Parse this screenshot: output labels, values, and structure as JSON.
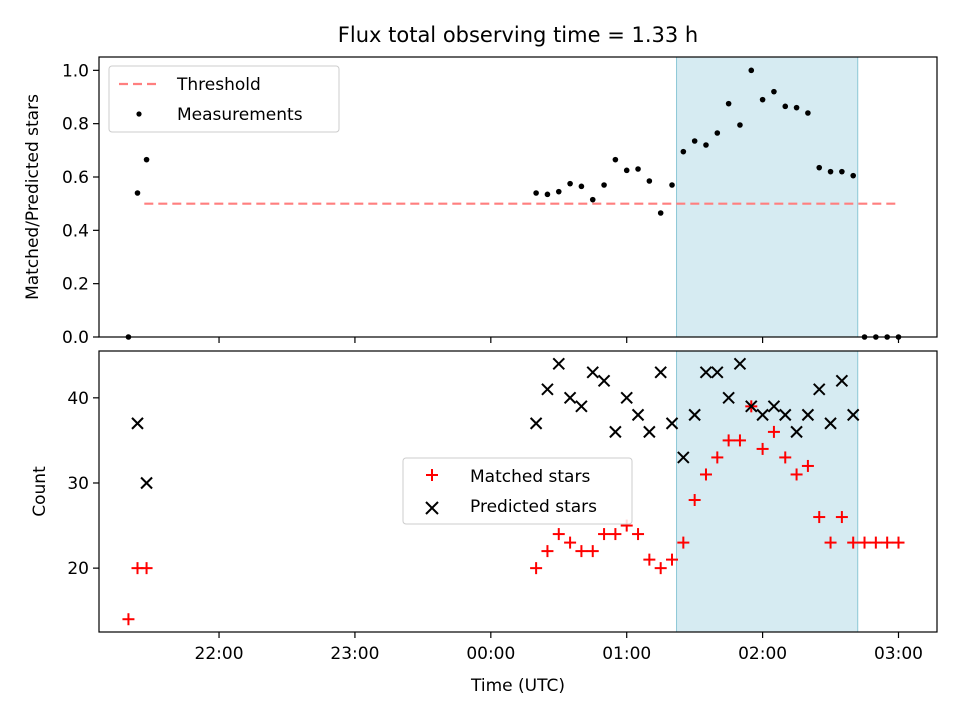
{
  "title": "Flux total observing time = 1.33 h",
  "chart_data": [
    {
      "type": "scatter",
      "panel": "top",
      "ylabel": "Matched/Predicted stars",
      "xlabel": "",
      "ylim": [
        0,
        1.05
      ],
      "yticks": [
        0.0,
        0.2,
        0.4,
        0.6,
        0.8,
        1.0
      ],
      "ytick_labels": [
        "0.0",
        "0.2",
        "0.4",
        "0.6",
        "0.8",
        "1.0"
      ],
      "legend": {
        "placement": "top-left",
        "items": [
          {
            "label": "Threshold",
            "marker": "dashed-line",
            "color": "#ff7f7f"
          },
          {
            "label": "Measurements",
            "marker": "dot",
            "color": "#000000"
          }
        ]
      },
      "highlight_span": {
        "start": "01:22",
        "end": "02:42",
        "color": "#add8e6"
      },
      "threshold": {
        "value": 0.5,
        "start": "21:27",
        "end": "03:00"
      },
      "series": [
        {
          "name": "Measurements",
          "x": [
            "21:20",
            "21:24",
            "21:28",
            "00:20",
            "00:25",
            "00:30",
            "00:35",
            "00:40",
            "00:45",
            "00:50",
            "00:55",
            "01:00",
            "01:05",
            "01:10",
            "01:15",
            "01:20",
            "01:25",
            "01:30",
            "01:35",
            "01:40",
            "01:45",
            "01:50",
            "01:55",
            "02:00",
            "02:05",
            "02:10",
            "02:15",
            "02:20",
            "02:25",
            "02:30",
            "02:35",
            "02:40",
            "02:45",
            "02:50",
            "02:55",
            "03:00"
          ],
          "y": [
            0.0,
            0.54,
            0.665,
            0.54,
            0.535,
            0.545,
            0.575,
            0.565,
            0.515,
            0.57,
            0.665,
            0.625,
            0.63,
            0.585,
            0.465,
            0.57,
            0.695,
            0.735,
            0.72,
            0.765,
            0.875,
            0.795,
            1.0,
            0.89,
            0.92,
            0.865,
            0.86,
            0.84,
            0.635,
            0.62,
            0.62,
            0.605,
            0.0,
            0.0,
            0.0,
            0.0
          ]
        }
      ]
    },
    {
      "type": "scatter",
      "panel": "bottom",
      "xlabel": "Time (UTC)",
      "ylabel": "Count",
      "ylim": [
        12.5,
        45.5
      ],
      "yticks": [
        20,
        30,
        40
      ],
      "ytick_labels": [
        "20",
        "30",
        "40"
      ],
      "xticks": [
        "22:00",
        "23:00",
        "00:00",
        "01:00",
        "02:00",
        "03:00"
      ],
      "xlim": [
        "21:07",
        "03:17"
      ],
      "legend": {
        "placement": "center",
        "items": [
          {
            "label": "Matched stars",
            "marker": "plus",
            "color": "#ff0000"
          },
          {
            "label": "Predicted stars",
            "marker": "x",
            "color": "#000000"
          }
        ]
      },
      "highlight_span": {
        "start": "01:22",
        "end": "02:42",
        "color": "#add8e6"
      },
      "series": [
        {
          "name": "Matched stars",
          "x": [
            "21:20",
            "21:24",
            "21:28",
            "00:20",
            "00:25",
            "00:30",
            "00:35",
            "00:40",
            "00:45",
            "00:50",
            "00:55",
            "01:00",
            "01:05",
            "01:10",
            "01:15",
            "01:20",
            "01:25",
            "01:30",
            "01:35",
            "01:40",
            "01:45",
            "01:50",
            "01:55",
            "02:00",
            "02:05",
            "02:10",
            "02:15",
            "02:20",
            "02:25",
            "02:30",
            "02:35",
            "02:40",
            "02:45",
            "02:50",
            "02:55",
            "03:00"
          ],
          "y": [
            14,
            20,
            20,
            20,
            22,
            24,
            23,
            22,
            22,
            24,
            24,
            25,
            24,
            21,
            20,
            21,
            23,
            28,
            31,
            33,
            35,
            35,
            39,
            34,
            36,
            33,
            31,
            32,
            26,
            23,
            26,
            23,
            23,
            23,
            23,
            23
          ]
        },
        {
          "name": "Predicted stars",
          "x": [
            "21:24",
            "21:28",
            "00:20",
            "00:25",
            "00:30",
            "00:35",
            "00:40",
            "00:45",
            "00:50",
            "00:55",
            "01:00",
            "01:05",
            "01:10",
            "01:15",
            "01:20",
            "01:25",
            "01:30",
            "01:35",
            "01:40",
            "01:45",
            "01:50",
            "01:55",
            "02:00",
            "02:05",
            "02:10",
            "02:15",
            "02:20",
            "02:25",
            "02:30",
            "02:35",
            "02:40"
          ],
          "y": [
            37,
            30,
            37,
            41,
            44,
            40,
            39,
            43,
            42,
            36,
            40,
            38,
            36,
            43,
            37,
            33,
            38,
            43,
            43,
            40,
            44,
            39,
            38,
            39,
            38,
            36,
            38,
            41,
            37,
            42,
            38
          ]
        }
      ]
    }
  ]
}
